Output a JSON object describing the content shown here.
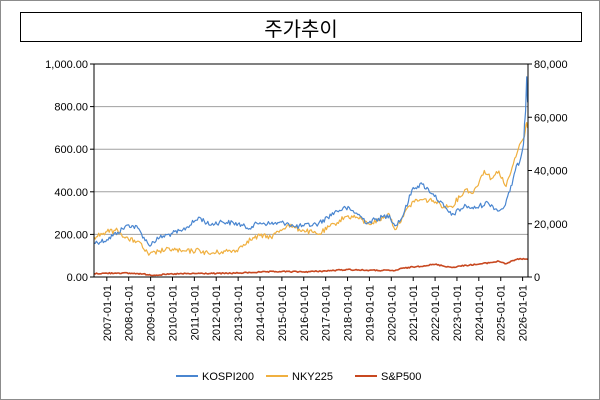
{
  "title": "주가추이",
  "chart_data": {
    "type": "line",
    "title": "주가추이",
    "grid": true,
    "legend_position": "bottom",
    "y_left": {
      "lim": [
        0,
        1000
      ],
      "ticks": [
        "0.00",
        "200.00",
        "400.00",
        "600.00",
        "800.00",
        "1,000.00"
      ],
      "tick_values": [
        0,
        200,
        400,
        600,
        800,
        1000
      ]
    },
    "y_right": {
      "lim": [
        0,
        80000
      ],
      "ticks": [
        "0",
        "20,000",
        "40,000",
        "60,000",
        "80,000"
      ],
      "tick_values": [
        0,
        20000,
        40000,
        60000,
        80000
      ]
    },
    "x_range": [
      "2006-06-01",
      "2026-04-01"
    ],
    "x_ticks": [
      "2007-01-01",
      "2008-01-01",
      "2009-01-01",
      "2010-01-01",
      "2011-01-01",
      "2012-01-01",
      "2013-01-01",
      "2014-01-01",
      "2015-01-01",
      "2016-01-01",
      "2017-01-01",
      "2018-01-01",
      "2019-01-01",
      "2020-01-01",
      "2021-01-01",
      "2022-01-01",
      "2023-01-01",
      "2024-01-01",
      "2025-01-01",
      "2026-01-01"
    ],
    "series": [
      {
        "name": "KOSPI200",
        "axis": "left",
        "color": "#4a86d0",
        "x": [
          "2006-06-01",
          "2007-01-01",
          "2007-07-01",
          "2008-01-01",
          "2008-06-01",
          "2008-12-01",
          "2009-06-01",
          "2010-01-01",
          "2010-06-01",
          "2011-04-01",
          "2011-09-01",
          "2012-04-01",
          "2013-01-01",
          "2013-06-01",
          "2014-01-01",
          "2014-07-01",
          "2015-04-01",
          "2015-08-01",
          "2016-01-01",
          "2016-09-01",
          "2017-06-01",
          "2017-12-01",
          "2018-06-01",
          "2018-12-01",
          "2019-06-01",
          "2019-12-01",
          "2020-03-01",
          "2020-07-01",
          "2021-01-01",
          "2021-06-01",
          "2021-12-01",
          "2022-06-01",
          "2022-10-01",
          "2023-06-01",
          "2023-10-01",
          "2024-06-01",
          "2024-12-01",
          "2025-03-01",
          "2025-06-01",
          "2025-09-01",
          "2025-12-01",
          "2026-01-15",
          "2026-02-01",
          "2026-02-20",
          "2026-03-10",
          "2026-03-25"
        ],
        "values": [
          160,
          175,
          210,
          245,
          230,
          150,
          185,
          205,
          215,
          280,
          245,
          260,
          250,
          230,
          255,
          250,
          255,
          235,
          240,
          250,
          305,
          325,
          300,
          255,
          275,
          290,
          240,
          280,
          420,
          435,
          390,
          330,
          290,
          335,
          320,
          350,
          310,
          330,
          400,
          500,
          560,
          620,
          720,
          780,
          940,
          820
        ]
      },
      {
        "name": "NKY225",
        "axis": "right",
        "color": "#f0b040",
        "x": [
          "2006-06-01",
          "2007-01-01",
          "2007-07-01",
          "2008-01-01",
          "2008-06-01",
          "2008-12-01",
          "2009-06-01",
          "2010-01-01",
          "2010-06-01",
          "2011-04-01",
          "2011-09-01",
          "2012-04-01",
          "2012-12-01",
          "2013-06-01",
          "2014-01-01",
          "2014-07-01",
          "2015-04-01",
          "2015-08-01",
          "2016-01-01",
          "2016-09-01",
          "2017-06-01",
          "2017-12-01",
          "2018-06-01",
          "2018-12-01",
          "2019-06-01",
          "2019-12-01",
          "2020-03-01",
          "2020-07-01",
          "2021-01-01",
          "2021-06-01",
          "2021-12-01",
          "2022-06-01",
          "2022-10-01",
          "2023-06-01",
          "2023-10-01",
          "2024-04-01",
          "2024-08-01",
          "2024-12-01",
          "2025-04-01",
          "2025-08-01",
          "2025-12-01",
          "2026-01-15",
          "2026-02-15",
          "2026-03-10",
          "2026-03-25"
        ],
        "values": [
          15000,
          17000,
          17500,
          14000,
          13500,
          8200,
          9800,
          10500,
          9500,
          10000,
          8700,
          9500,
          10000,
          13500,
          15500,
          15000,
          19500,
          18500,
          17500,
          16000,
          20000,
          22700,
          22500,
          20000,
          21200,
          23600,
          17800,
          22500,
          28500,
          29000,
          28700,
          26500,
          26500,
          33000,
          31500,
          40000,
          37000,
          39800,
          34000,
          42500,
          50500,
          52000,
          55000,
          58000,
          56000
        ]
      },
      {
        "name": "S&P500",
        "axis": "right",
        "color": "#c84820",
        "x": [
          "2006-06-01",
          "2007-07-01",
          "2008-06-01",
          "2009-03-01",
          "2010-01-01",
          "2011-04-01",
          "2012-01-01",
          "2013-01-01",
          "2014-01-01",
          "2015-01-01",
          "2016-01-01",
          "2017-01-01",
          "2018-01-01",
          "2019-01-01",
          "2020-03-01",
          "2020-07-01",
          "2021-01-01",
          "2022-01-01",
          "2022-10-01",
          "2023-06-01",
          "2024-01-01",
          "2024-12-01",
          "2025-04-01",
          "2025-09-01",
          "2026-01-15",
          "2026-03-25"
        ],
        "values": [
          1270,
          1520,
          1300,
          680,
          1120,
          1340,
          1310,
          1480,
          1840,
          2060,
          1930,
          2270,
          2800,
          2500,
          2400,
          3250,
          3750,
          4750,
          3600,
          4400,
          4800,
          5900,
          5000,
          6500,
          6900,
          6700
        ]
      }
    ]
  }
}
